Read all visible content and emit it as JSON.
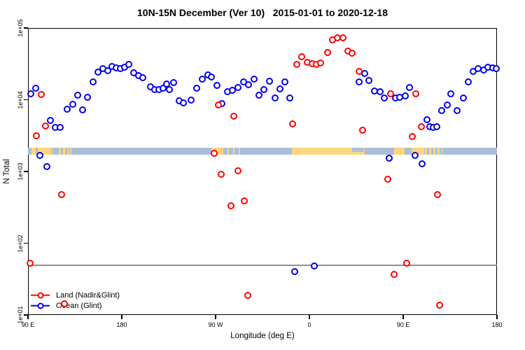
{
  "chart_data": {
    "type": "scatter",
    "title": "10N-15N December (Ver 10)   2015-01-01 to 2020-12-18",
    "xlabel": "Longitude (deg E)",
    "ylabel": "N Total",
    "x_axis": {
      "range": [
        90,
        540
      ],
      "note": "longitude wraps eastward from 90E around the globe to 180",
      "ticks": [
        90,
        180,
        270,
        360,
        450,
        540
      ],
      "tick_labels": [
        "90 E",
        "180",
        "90 W",
        "0",
        "90 E",
        "180"
      ]
    },
    "y_axis": {
      "scale": "log",
      "range": [
        10,
        100000
      ],
      "ticks": [
        10,
        100,
        1000,
        10000,
        100000
      ],
      "tick_labels": [
        "1e+01",
        "1e+02",
        "1e+03",
        "1e+04",
        "1e+05"
      ]
    },
    "reference_line": {
      "y": 50,
      "color": "#909090"
    },
    "map_strip": {
      "n_range": [
        1700,
        2150
      ],
      "ocean_color": "#A9BFDB",
      "land_color": "#FDD67D",
      "land_segments": [
        {
          "lon": [
            93.4,
            97.4
          ],
          "style": "solid"
        },
        {
          "lon": [
            99.4,
            112.2
          ],
          "style": "solid"
        },
        {
          "lon": [
            113.5,
            114.5
          ],
          "style": "solid"
        },
        {
          "lon": [
            119.6,
            129.0
          ],
          "style": "dense"
        },
        {
          "lon": [
            130.3,
            132.3
          ],
          "style": "sparse"
        },
        {
          "lon": [
            266.0,
            275.4
          ],
          "style": "solid"
        },
        {
          "lon": [
            276.0,
            293.5
          ],
          "style": "sparse"
        },
        {
          "lon": [
            343.2,
            413.0
          ],
          "style": "solid"
        },
        {
          "lon": [
            441.3,
            451.4
          ],
          "style": "solid"
        },
        {
          "lon": [
            458.1,
            470.1
          ],
          "style": "solid"
        },
        {
          "lon": [
            470.8,
            487.6
          ],
          "style": "dense"
        }
      ],
      "ocean_overlays": [
        {
          "lon": [
            401.0,
            412.4
          ],
          "half": "top"
        }
      ]
    },
    "series": [
      {
        "name": "Land (Nadir&Glint)",
        "color": "#FF0000",
        "points": [
          [
            92.2,
            53
          ],
          [
            98.3,
            3150
          ],
          [
            102.6,
            11900
          ],
          [
            106.6,
            4280
          ],
          [
            122.0,
            475
          ],
          [
            124.6,
            14.4
          ],
          [
            268.7,
            1790
          ],
          [
            272.5,
            8450
          ],
          [
            275.4,
            914
          ],
          [
            285.0,
            335
          ],
          [
            287.5,
            5900
          ],
          [
            291.5,
            1020
          ],
          [
            297.3,
            392
          ],
          [
            300.7,
            18.6
          ],
          [
            344.1,
            4600
          ],
          [
            347.9,
            31100
          ],
          [
            352.8,
            39800
          ],
          [
            358.0,
            33500
          ],
          [
            362.5,
            31800
          ],
          [
            366.5,
            31100
          ],
          [
            370.7,
            32300
          ],
          [
            377.5,
            45300
          ],
          [
            382.0,
            68200
          ],
          [
            386.9,
            72400
          ],
          [
            392.0,
            72400
          ],
          [
            397.1,
            48000
          ],
          [
            401.0,
            44300
          ],
          [
            407.7,
            24800
          ],
          [
            411.0,
            3790
          ],
          [
            435.0,
            782
          ],
          [
            438.1,
            12000
          ],
          [
            441.1,
            37
          ],
          [
            453.1,
            53
          ],
          [
            458.7,
            3060
          ],
          [
            462.1,
            12000
          ],
          [
            467.2,
            4240
          ],
          [
            482.9,
            473
          ],
          [
            485.1,
            13.7
          ]
        ]
      },
      {
        "name": "Ocean (Glint)",
        "color": "#0000EE",
        "points": [
          [
            92.4,
            12100
          ],
          [
            97.4,
            14500
          ],
          [
            101.2,
            1690
          ],
          [
            107.9,
            1180
          ],
          [
            111.7,
            5150
          ],
          [
            116.4,
            4090
          ],
          [
            120.9,
            4140
          ],
          [
            127.8,
            7330
          ],
          [
            132.8,
            8650
          ],
          [
            137.7,
            11700
          ],
          [
            142.2,
            7260
          ],
          [
            146.9,
            10700
          ],
          [
            152.3,
            17700
          ],
          [
            157.4,
            24300
          ],
          [
            161.7,
            27400
          ],
          [
            166.4,
            25200
          ],
          [
            170.6,
            29000
          ],
          [
            174.4,
            28000
          ],
          [
            178.9,
            27400
          ],
          [
            182.5,
            28400
          ],
          [
            186.5,
            31300
          ],
          [
            191.2,
            23800
          ],
          [
            196.1,
            21600
          ],
          [
            200.3,
            20400
          ],
          [
            207.7,
            15100
          ],
          [
            211.4,
            13800
          ],
          [
            215.4,
            13800
          ],
          [
            219.8,
            14500
          ],
          [
            222.8,
            16600
          ],
          [
            225.9,
            13800
          ],
          [
            229.9,
            17400
          ],
          [
            234.9,
            9610
          ],
          [
            238.9,
            9100
          ],
          [
            246.5,
            9890
          ],
          [
            252.1,
            14500
          ],
          [
            257.0,
            19400
          ],
          [
            262.4,
            22400
          ],
          [
            266.2,
            20600
          ],
          [
            271.3,
            15900
          ],
          [
            276.2,
            8770
          ],
          [
            281.6,
            13000
          ],
          [
            286.3,
            13600
          ],
          [
            291.5,
            14900
          ],
          [
            296.7,
            17800
          ],
          [
            301.6,
            16100
          ],
          [
            307.1,
            19300
          ],
          [
            311.6,
            11700
          ],
          [
            316.5,
            13800
          ],
          [
            321.7,
            18000
          ],
          [
            326.9,
            10500
          ],
          [
            331.8,
            14100
          ],
          [
            336.7,
            17600
          ],
          [
            341.2,
            10600
          ],
          [
            346.1,
            40
          ],
          [
            364.9,
            48
          ],
          [
            407.9,
            17600
          ],
          [
            412.8,
            23100
          ],
          [
            417.3,
            18400
          ],
          [
            422.4,
            13200
          ],
          [
            427.6,
            12900
          ],
          [
            432.0,
            10600
          ],
          [
            436.5,
            1530
          ],
          [
            442.6,
            10600
          ],
          [
            446.6,
            10900
          ],
          [
            452.0,
            11300
          ],
          [
            456.0,
            14700
          ],
          [
            461.6,
            1680
          ],
          [
            467.9,
            1270
          ],
          [
            472.8,
            5240
          ],
          [
            475.5,
            4180
          ],
          [
            478.9,
            4120
          ],
          [
            482.2,
            4240
          ],
          [
            486.7,
            7060
          ],
          [
            492.3,
            8450
          ],
          [
            495.7,
            12200
          ],
          [
            501.5,
            7060
          ],
          [
            507.7,
            10600
          ],
          [
            512.2,
            17600
          ],
          [
            517.3,
            24700
          ],
          [
            522.0,
            27000
          ],
          [
            527.0,
            26000
          ],
          [
            531.2,
            28400
          ],
          [
            535.7,
            27600
          ],
          [
            539.5,
            27000
          ]
        ]
      }
    ],
    "legend": {
      "position": "bottom-left",
      "entries": [
        "Land (Nadir&Glint)",
        "Ocean (Glint)"
      ]
    }
  }
}
